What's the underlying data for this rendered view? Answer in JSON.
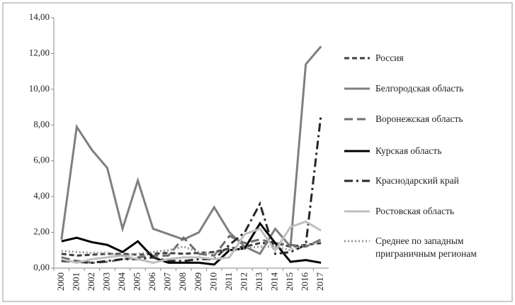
{
  "chart_data": {
    "type": "line",
    "categories": [
      "2000",
      "2001",
      "2002",
      "2003",
      "2004",
      "2005",
      "2006",
      "2007",
      "2008",
      "2009",
      "2010",
      "2011",
      "2012",
      "2013",
      "2014",
      "2015",
      "2016",
      "2017"
    ],
    "ylim": [
      0,
      14
    ],
    "yticks": [
      {
        "value": 0,
        "label": "0,00"
      },
      {
        "value": 2,
        "label": "2,00"
      },
      {
        "value": 4,
        "label": "4,00"
      },
      {
        "value": 6,
        "label": "6,00"
      },
      {
        "value": 8,
        "label": "8,00"
      },
      {
        "value": 10,
        "label": "10,00"
      },
      {
        "value": 12,
        "label": "12,00"
      },
      {
        "value": 14,
        "label": "14,00"
      }
    ],
    "grid": false,
    "legend": "right",
    "series": [
      {
        "name": "Россия",
        "color": "#404040",
        "dash": "dash",
        "values": [
          0.8,
          0.7,
          0.75,
          0.8,
          0.8,
          0.75,
          0.8,
          0.85,
          0.8,
          0.85,
          0.9,
          1.1,
          1.2,
          1.4,
          1.4,
          1.2,
          1.3,
          1.4
        ]
      },
      {
        "name": "Белгородская область",
        "color": "#7f7f7f",
        "dash": "solid",
        "values": [
          1.6,
          7.9,
          6.6,
          5.6,
          2.2,
          4.9,
          2.2,
          1.9,
          1.6,
          2.0,
          3.4,
          2.0,
          1.2,
          0.8,
          2.2,
          1.2,
          11.4,
          12.4
        ]
      },
      {
        "name": "Воронежская область",
        "color": "#6f6f6f",
        "dash": "longdash",
        "values": [
          0.6,
          0.4,
          0.3,
          0.35,
          0.5,
          0.6,
          0.7,
          0.7,
          1.7,
          0.8,
          0.7,
          1.8,
          1.4,
          1.6,
          1.4,
          1.3,
          1.2,
          1.6
        ]
      },
      {
        "name": "Курская область",
        "color": "#000000",
        "dash": "solid",
        "values": [
          1.5,
          1.7,
          1.45,
          1.3,
          0.9,
          1.5,
          0.6,
          0.3,
          0.3,
          0.3,
          0.2,
          1.0,
          1.1,
          2.5,
          1.4,
          0.35,
          0.45,
          0.3
        ]
      },
      {
        "name": "Краснодарский край",
        "color": "#262626",
        "dash": "dashdot",
        "values": [
          0.4,
          0.35,
          0.3,
          0.4,
          0.5,
          0.5,
          0.6,
          0.4,
          0.4,
          0.5,
          0.5,
          1.3,
          2.0,
          3.6,
          0.8,
          0.9,
          1.3,
          8.6
        ]
      },
      {
        "name": "Ростовская область",
        "color": "#bfbfbf",
        "dash": "solid",
        "values": [
          0.5,
          0.3,
          0.5,
          0.6,
          0.7,
          0.5,
          0.3,
          0.5,
          0.6,
          0.6,
          0.5,
          0.6,
          1.9,
          2.2,
          1.0,
          2.3,
          2.6,
          2.1
        ]
      },
      {
        "name": "Среднее по западным приграничным регионам",
        "color": "#999999",
        "dash": "dot",
        "values": [
          0.95,
          0.9,
          0.85,
          0.85,
          0.7,
          0.8,
          0.9,
          1.0,
          1.2,
          0.9,
          0.8,
          1.0,
          1.1,
          1.2,
          1.2,
          1.0,
          1.3,
          1.5
        ]
      }
    ]
  }
}
